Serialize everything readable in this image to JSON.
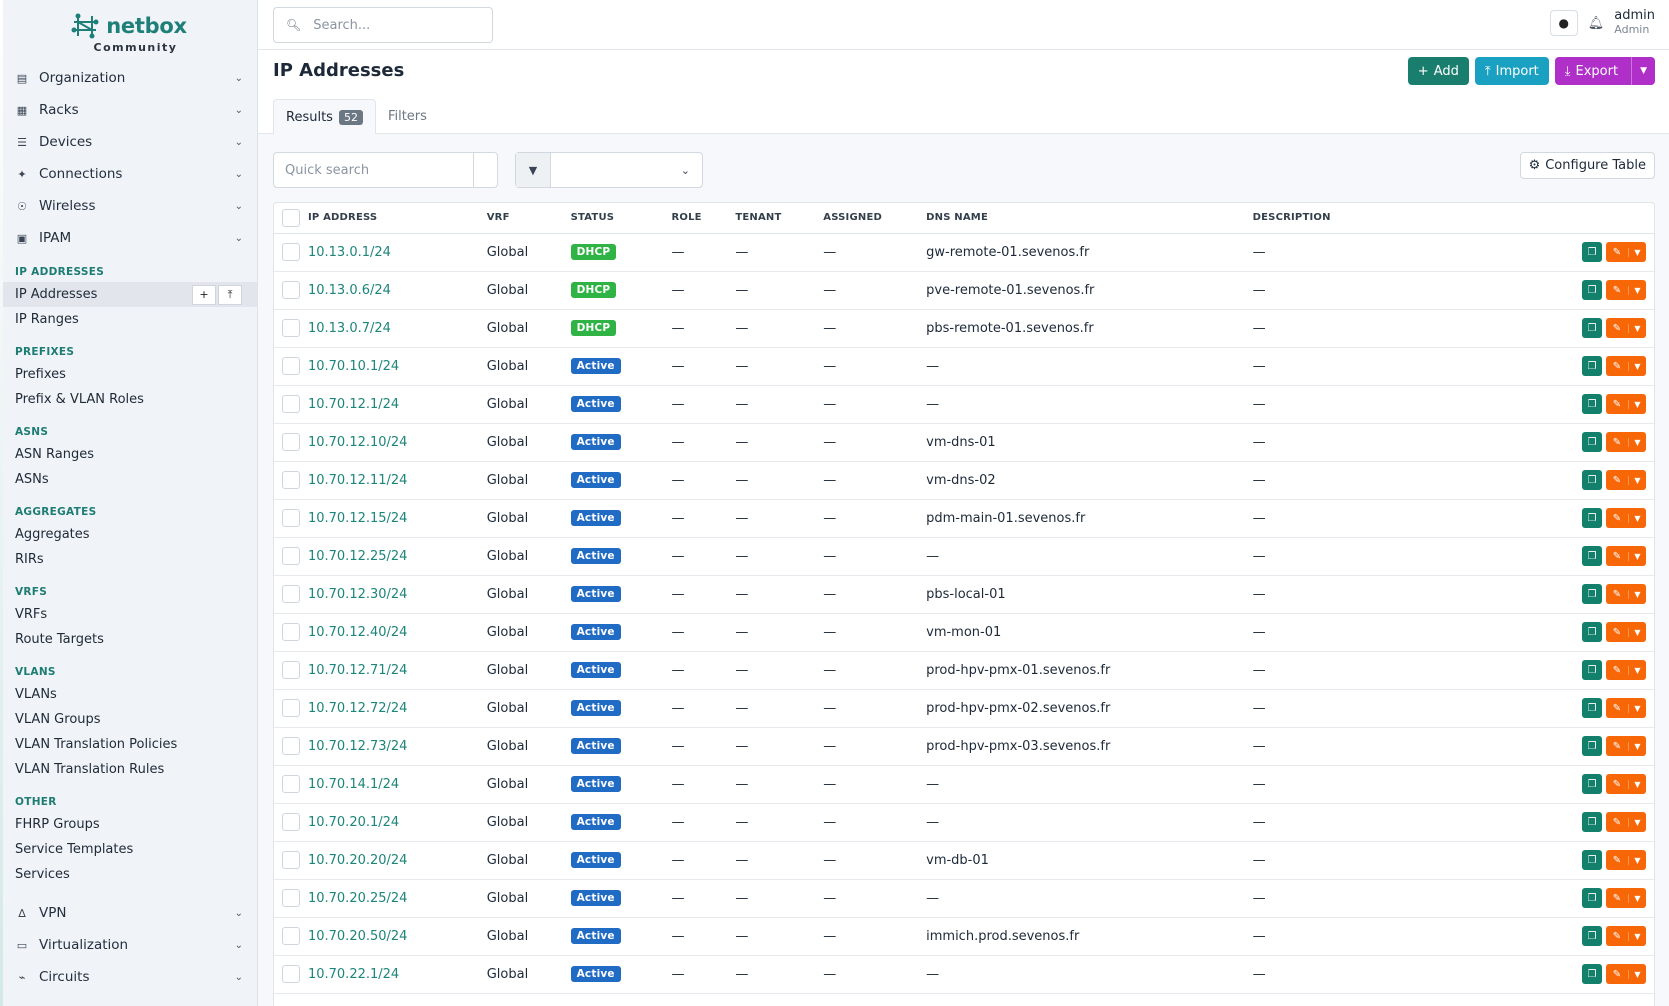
{
  "brand": {
    "name": "netbox",
    "edition": "Community"
  },
  "search": {
    "placeholder": "Search..."
  },
  "user": {
    "name": "admin",
    "role": "Admin"
  },
  "nav_top": [
    {
      "label": "Organization",
      "icon": "building-icon"
    },
    {
      "label": "Racks",
      "icon": "rack-icon"
    },
    {
      "label": "Devices",
      "icon": "server-icon"
    },
    {
      "label": "Connections",
      "icon": "plug-icon"
    },
    {
      "label": "Wireless",
      "icon": "wifi-icon"
    },
    {
      "label": "IPAM",
      "icon": "counter-icon"
    }
  ],
  "ipam_sections": [
    {
      "title": "IP Addresses",
      "items": [
        "IP Addresses",
        "IP Ranges"
      ]
    },
    {
      "title": "Prefixes",
      "items": [
        "Prefixes",
        "Prefix & VLAN Roles"
      ]
    },
    {
      "title": "ASNs",
      "items": [
        "ASN Ranges",
        "ASNs"
      ]
    },
    {
      "title": "Aggregates",
      "items": [
        "Aggregates",
        "RIRs"
      ]
    },
    {
      "title": "VRFs",
      "items": [
        "VRFs",
        "Route Targets"
      ]
    },
    {
      "title": "VLANs",
      "items": [
        "VLANs",
        "VLAN Groups",
        "VLAN Translation Policies",
        "VLAN Translation Rules"
      ]
    },
    {
      "title": "Other",
      "items": [
        "FHRP Groups",
        "Service Templates",
        "Services"
      ]
    }
  ],
  "nav_bottom": [
    {
      "label": "VPN",
      "icon": "vpn-icon"
    },
    {
      "label": "Virtualization",
      "icon": "monitor-icon"
    },
    {
      "label": "Circuits",
      "icon": "circuit-icon"
    }
  ],
  "page": {
    "title": "IP Addresses",
    "add_label": "Add",
    "import_label": "Import",
    "export_label": "Export",
    "tab_results": "Results",
    "results_count": "52",
    "tab_filters": "Filters",
    "quick_search_placeholder": "Quick search",
    "configure_table": "Configure Table"
  },
  "table": {
    "columns": [
      "IP Address",
      "VRF",
      "Status",
      "Role",
      "Tenant",
      "Assigned",
      "DNS Name",
      "Description"
    ],
    "rows": [
      {
        "ip": "10.13.0.1/24",
        "vrf": "Global",
        "status": "DHCP",
        "role": "—",
        "tenant": "—",
        "assigned": "—",
        "dns": "gw-remote-01.sevenos.fr",
        "desc": "—"
      },
      {
        "ip": "10.13.0.6/24",
        "vrf": "Global",
        "status": "DHCP",
        "role": "—",
        "tenant": "—",
        "assigned": "—",
        "dns": "pve-remote-01.sevenos.fr",
        "desc": "—"
      },
      {
        "ip": "10.13.0.7/24",
        "vrf": "Global",
        "status": "DHCP",
        "role": "—",
        "tenant": "—",
        "assigned": "—",
        "dns": "pbs-remote-01.sevenos.fr",
        "desc": "—"
      },
      {
        "ip": "10.70.10.1/24",
        "vrf": "Global",
        "status": "Active",
        "role": "—",
        "tenant": "—",
        "assigned": "—",
        "dns": "—",
        "desc": "—"
      },
      {
        "ip": "10.70.12.1/24",
        "vrf": "Global",
        "status": "Active",
        "role": "—",
        "tenant": "—",
        "assigned": "—",
        "dns": "—",
        "desc": "—"
      },
      {
        "ip": "10.70.12.10/24",
        "vrf": "Global",
        "status": "Active",
        "role": "—",
        "tenant": "—",
        "assigned": "—",
        "dns": "vm-dns-01",
        "desc": "—"
      },
      {
        "ip": "10.70.12.11/24",
        "vrf": "Global",
        "status": "Active",
        "role": "—",
        "tenant": "—",
        "assigned": "—",
        "dns": "vm-dns-02",
        "desc": "—"
      },
      {
        "ip": "10.70.12.15/24",
        "vrf": "Global",
        "status": "Active",
        "role": "—",
        "tenant": "—",
        "assigned": "—",
        "dns": "pdm-main-01.sevenos.fr",
        "desc": "—"
      },
      {
        "ip": "10.70.12.25/24",
        "vrf": "Global",
        "status": "Active",
        "role": "—",
        "tenant": "—",
        "assigned": "—",
        "dns": "—",
        "desc": "—"
      },
      {
        "ip": "10.70.12.30/24",
        "vrf": "Global",
        "status": "Active",
        "role": "—",
        "tenant": "—",
        "assigned": "—",
        "dns": "pbs-local-01",
        "desc": "—"
      },
      {
        "ip": "10.70.12.40/24",
        "vrf": "Global",
        "status": "Active",
        "role": "—",
        "tenant": "—",
        "assigned": "—",
        "dns": "vm-mon-01",
        "desc": "—"
      },
      {
        "ip": "10.70.12.71/24",
        "vrf": "Global",
        "status": "Active",
        "role": "—",
        "tenant": "—",
        "assigned": "—",
        "dns": "prod-hpv-pmx-01.sevenos.fr",
        "desc": "—"
      },
      {
        "ip": "10.70.12.72/24",
        "vrf": "Global",
        "status": "Active",
        "role": "—",
        "tenant": "—",
        "assigned": "—",
        "dns": "prod-hpv-pmx-02.sevenos.fr",
        "desc": "—"
      },
      {
        "ip": "10.70.12.73/24",
        "vrf": "Global",
        "status": "Active",
        "role": "—",
        "tenant": "—",
        "assigned": "—",
        "dns": "prod-hpv-pmx-03.sevenos.fr",
        "desc": "—"
      },
      {
        "ip": "10.70.14.1/24",
        "vrf": "Global",
        "status": "Active",
        "role": "—",
        "tenant": "—",
        "assigned": "—",
        "dns": "—",
        "desc": "—"
      },
      {
        "ip": "10.70.20.1/24",
        "vrf": "Global",
        "status": "Active",
        "role": "—",
        "tenant": "—",
        "assigned": "—",
        "dns": "—",
        "desc": "—"
      },
      {
        "ip": "10.70.20.20/24",
        "vrf": "Global",
        "status": "Active",
        "role": "—",
        "tenant": "—",
        "assigned": "—",
        "dns": "vm-db-01",
        "desc": "—"
      },
      {
        "ip": "10.70.20.25/24",
        "vrf": "Global",
        "status": "Active",
        "role": "—",
        "tenant": "—",
        "assigned": "—",
        "dns": "—",
        "desc": "—"
      },
      {
        "ip": "10.70.20.50/24",
        "vrf": "Global",
        "status": "Active",
        "role": "—",
        "tenant": "—",
        "assigned": "—",
        "dns": "immich.prod.sevenos.fr",
        "desc": "—"
      },
      {
        "ip": "10.70.22.1/24",
        "vrf": "Global",
        "status": "Active",
        "role": "—",
        "tenant": "—",
        "assigned": "—",
        "dns": "—",
        "desc": "—"
      }
    ]
  },
  "colors": {
    "accent": "#1c857a",
    "dhcp": "#2fb344",
    "active": "#206bc4",
    "add": "#1a7e6f",
    "import": "#1aa1c1",
    "export": "#b02fc9",
    "edit": "#f76707"
  }
}
